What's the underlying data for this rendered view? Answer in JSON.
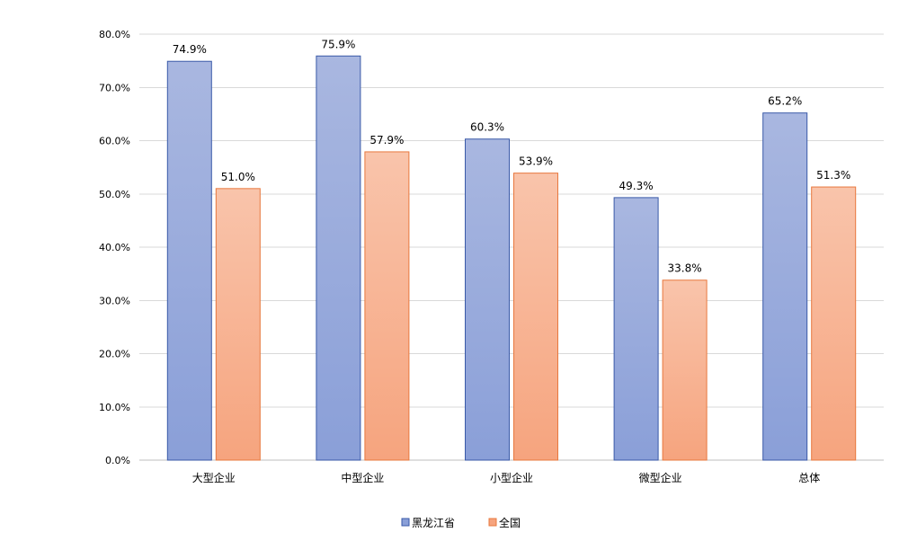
{
  "chart_data": {
    "type": "bar",
    "title": "",
    "xlabel": "",
    "ylabel": "",
    "categories": [
      "大型企业",
      "中型企业",
      "小型企业",
      "微型企业",
      "总体"
    ],
    "series": [
      {
        "name": "黑龙江省",
        "values": [
          74.9,
          75.9,
          60.3,
          49.3,
          65.2
        ]
      },
      {
        "name": "全国",
        "values": [
          51.0,
          57.9,
          53.9,
          33.8,
          51.3
        ]
      }
    ],
    "ylim": [
      0,
      80
    ],
    "yticks": [
      0,
      10,
      20,
      30,
      40,
      50,
      60,
      70,
      80
    ],
    "ytick_labels": [
      "0.0%",
      "10.0%",
      "20.0%",
      "30.0%",
      "40.0%",
      "50.0%",
      "60.0%",
      "70.0%",
      "80.0%"
    ],
    "data_labels": [
      [
        "74.9%",
        "75.9%",
        "60.3%",
        "49.3%",
        "65.2%"
      ],
      [
        "51.0%",
        "57.9%",
        "53.9%",
        "33.8%",
        "51.3%"
      ]
    ],
    "grid": true,
    "legend_position": "bottom",
    "colors": {
      "series_fill_top": [
        "#a9b7e0",
        "#f9c4ab"
      ],
      "series_fill_bottom": [
        "#8a9fd8",
        "#f6a47e"
      ],
      "series_stroke": [
        "#3a5aa8",
        "#e8783e"
      ],
      "grid": "#d9d9d9",
      "axis": "#bfbfbf",
      "text": "#000000"
    }
  }
}
